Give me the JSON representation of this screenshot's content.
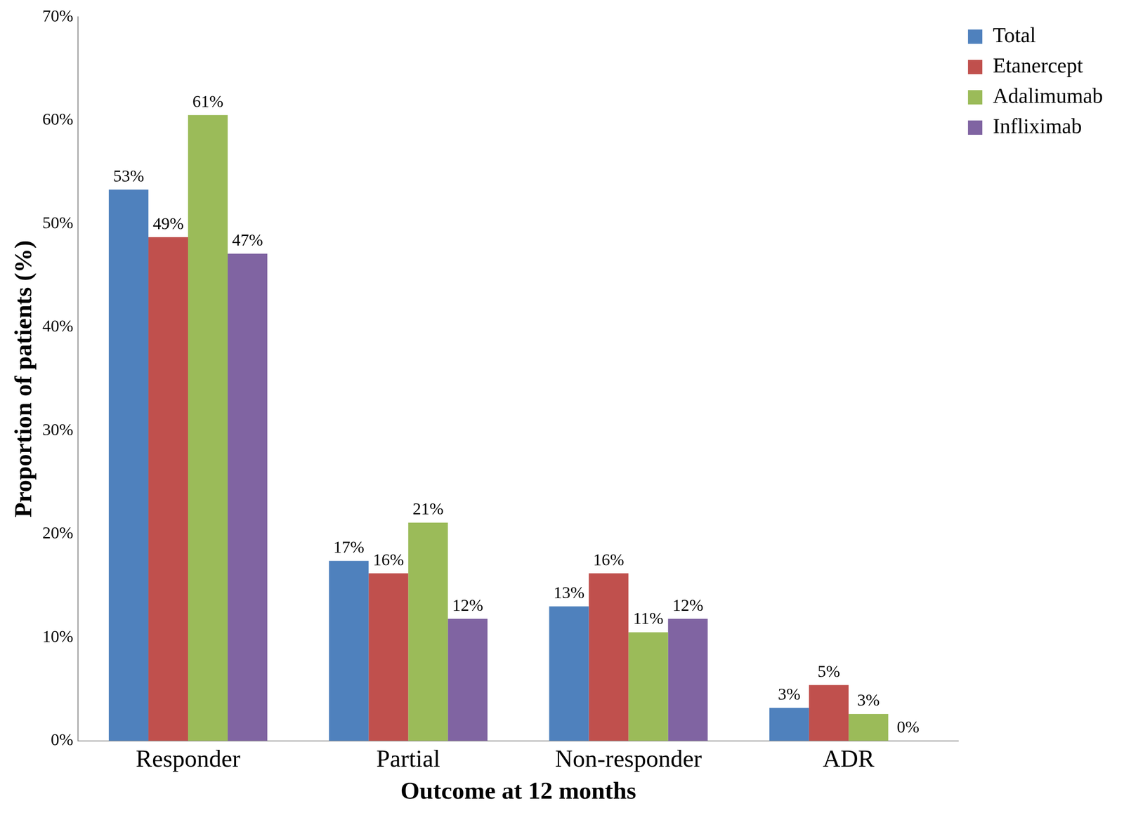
{
  "chart_data": {
    "type": "bar",
    "x_label": "Outcome at 12 months",
    "y_label": "Proportion of patients (%)",
    "categories": [
      "Responder",
      "Partial",
      "Non-responder",
      "ADR"
    ],
    "series": [
      {
        "name": "Total",
        "color": "#4F81BD",
        "values": [
          53.3,
          17.4,
          13.0,
          3.2
        ],
        "value_labels": [
          "53%",
          "17%",
          "13%",
          "3%"
        ]
      },
      {
        "name": "Etanercept",
        "color": "#C0504D",
        "values": [
          48.7,
          16.2,
          16.2,
          5.4
        ],
        "value_labels": [
          "49%",
          "16%",
          "16%",
          "5%"
        ]
      },
      {
        "name": "Adalimumab",
        "color": "#9BBB59",
        "values": [
          60.5,
          21.1,
          10.5,
          2.6
        ],
        "value_labels": [
          "61%",
          "21%",
          "11%",
          "3%"
        ]
      },
      {
        "name": "Infliximab",
        "color": "#8064A2",
        "values": [
          47.1,
          11.8,
          11.8,
          0
        ],
        "value_labels": [
          "47%",
          "12%",
          "12%",
          "0%"
        ]
      }
    ],
    "ylim": [
      0,
      70
    ],
    "yticks": [
      {
        "value": 0,
        "label": "0%"
      },
      {
        "value": 10,
        "label": "10%"
      },
      {
        "value": 20,
        "label": "20%"
      },
      {
        "value": 30,
        "label": "30%"
      },
      {
        "value": 40,
        "label": "40%"
      },
      {
        "value": 50,
        "label": "50%"
      },
      {
        "value": 60,
        "label": "60%"
      },
      {
        "value": 70,
        "label": "70%"
      }
    ],
    "grid": false,
    "legend": "right",
    "data_labels": true
  }
}
